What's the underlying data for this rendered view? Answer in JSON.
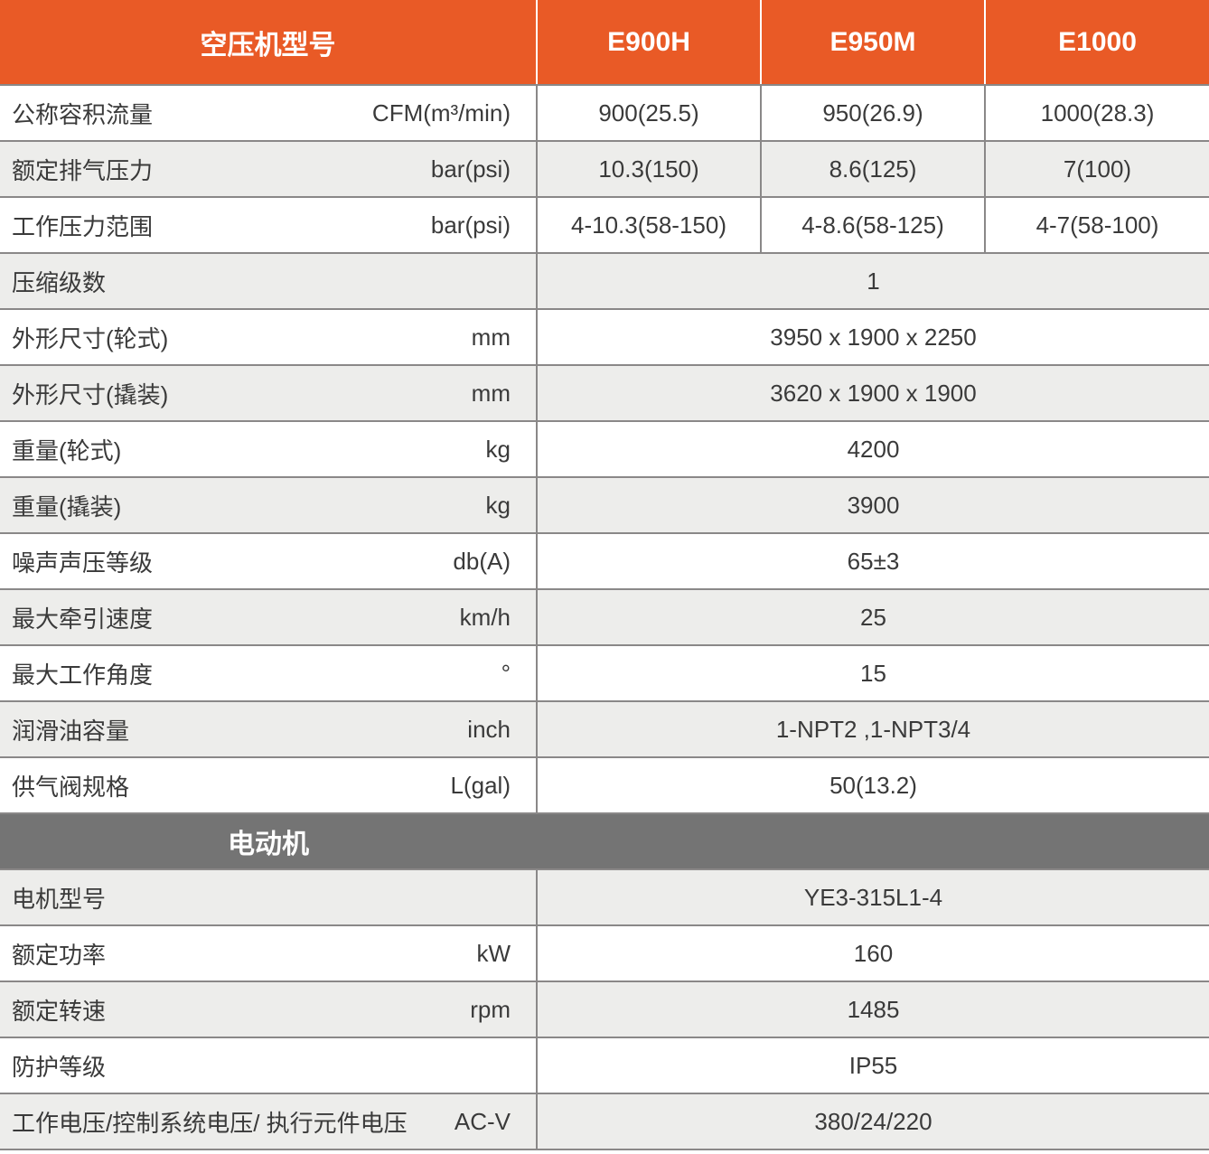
{
  "header": {
    "model_label": "空压机型号",
    "models": [
      "E900H",
      "E950M",
      "E1000"
    ]
  },
  "rows": [
    {
      "label": "公称容积流量",
      "unit": "CFM(m³/min)",
      "values": [
        "900(25.5)",
        "950(26.9)",
        "1000(28.3)"
      ]
    },
    {
      "label": "额定排气压力",
      "unit": "bar(psi)",
      "values": [
        "10.3(150)",
        "8.6(125)",
        "7(100)"
      ]
    },
    {
      "label": "工作压力范围",
      "unit": "bar(psi)",
      "values": [
        "4-10.3(58-150)",
        "4-8.6(58-125)",
        "4-7(58-100)"
      ]
    },
    {
      "label": "压缩级数",
      "unit": "",
      "merged": "1"
    },
    {
      "label": "外形尺寸(轮式)",
      "unit": "mm",
      "merged": "3950 x 1900 x 2250"
    },
    {
      "label": "外形尺寸(撬装)",
      "unit": "mm",
      "merged": "3620 x 1900 x 1900"
    },
    {
      "label": "重量(轮式)",
      "unit": "kg",
      "merged": "4200"
    },
    {
      "label": "重量(撬装)",
      "unit": "kg",
      "merged": "3900"
    },
    {
      "label": "噪声声压等级",
      "unit": "db(A)",
      "merged": "65±3"
    },
    {
      "label": "最大牵引速度",
      "unit": "km/h",
      "merged": "25"
    },
    {
      "label": "最大工作角度",
      "unit": "°",
      "merged": "15"
    },
    {
      "label": "润滑油容量",
      "unit": "inch",
      "merged": "1-NPT2 ,1-NPT3/4"
    },
    {
      "label": "供气阀规格",
      "unit": "L(gal)",
      "merged": "50(13.2)"
    }
  ],
  "motor": {
    "title": "电动机",
    "rows": [
      {
        "label": "电机型号",
        "unit": "",
        "merged": "YE3-315L1-4"
      },
      {
        "label": "额定功率",
        "unit": "kW",
        "merged": "160"
      },
      {
        "label": "额定转速",
        "unit": "rpm",
        "merged": "1485"
      },
      {
        "label": "防护等级",
        "unit": "",
        "merged": "IP55"
      },
      {
        "label": "工作电压/控制系统电压/ 执行元件电压",
        "unit": "AC-V",
        "merged": "380/24/220"
      }
    ]
  },
  "colors": {
    "accent_orange": "#E95A26",
    "section_gray": "#747474",
    "row_alt_gray": "#EDEDEB",
    "border_gray": "#8A8888",
    "text": "#3A3A3A"
  }
}
